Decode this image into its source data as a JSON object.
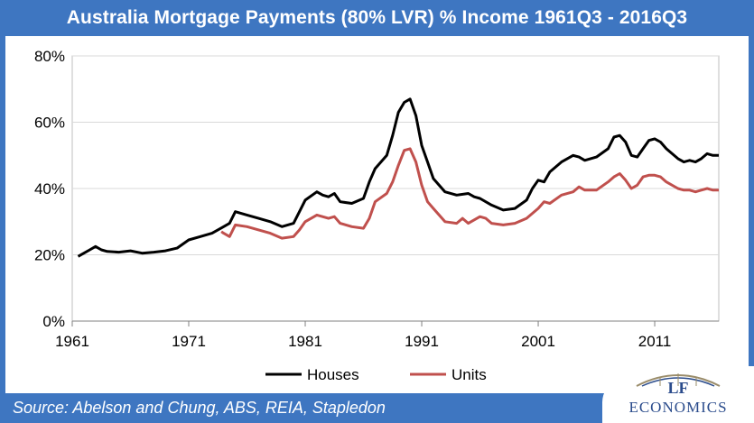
{
  "header": {
    "title": "Australia Mortgage Payments (80% LVR) % Income 1961Q3  - 2016Q3"
  },
  "footer": {
    "source": "Source:  Abelson and Chung, ABS, REIA, Stapledon"
  },
  "logo": {
    "line1": "LF",
    "line2": "ECONOMICS"
  },
  "colors": {
    "houses": "#000000",
    "units": "#c0504d",
    "frame": "#3e76c1",
    "grid": "#d9d9d9"
  },
  "chart_data": {
    "type": "line",
    "title": "Australia Mortgage Payments (80% LVR) % Income 1961Q3  - 2016Q3",
    "xlabel": "",
    "ylabel": "",
    "xlim": [
      1961,
      2016.5
    ],
    "ylim": [
      0,
      80
    ],
    "x_ticks": [
      "1961",
      "1971",
      "1981",
      "1991",
      "2001",
      "2011"
    ],
    "y_ticks": [
      "0%",
      "20%",
      "40%",
      "60%",
      "80%"
    ],
    "grid": true,
    "legend": "bottom-center",
    "series": [
      {
        "name": "Houses",
        "color": "#000000",
        "points": [
          [
            1961.5,
            19.5
          ],
          [
            1962,
            20.5
          ],
          [
            1962.5,
            21.5
          ],
          [
            1963,
            22.5
          ],
          [
            1963.5,
            21.5
          ],
          [
            1964,
            21
          ],
          [
            1965,
            20.8
          ],
          [
            1966,
            21.2
          ],
          [
            1967,
            20.5
          ],
          [
            1968,
            20.8
          ],
          [
            1969,
            21.2
          ],
          [
            1970,
            22
          ],
          [
            1971,
            24.5
          ],
          [
            1972,
            25.5
          ],
          [
            1973,
            26.5
          ],
          [
            1974,
            28.5
          ],
          [
            1974.5,
            29.5
          ],
          [
            1975,
            33
          ],
          [
            1976,
            32
          ],
          [
            1977,
            31
          ],
          [
            1978,
            30
          ],
          [
            1979,
            28.5
          ],
          [
            1980,
            29.5
          ],
          [
            1980.5,
            33
          ],
          [
            1981,
            36.5
          ],
          [
            1982,
            39
          ],
          [
            1982.5,
            38
          ],
          [
            1983,
            37.5
          ],
          [
            1983.5,
            38.5
          ],
          [
            1984,
            36
          ],
          [
            1985,
            35.5
          ],
          [
            1986,
            37
          ],
          [
            1986.5,
            42
          ],
          [
            1987,
            46
          ],
          [
            1988,
            50
          ],
          [
            1988.5,
            56
          ],
          [
            1989,
            63
          ],
          [
            1989.5,
            66
          ],
          [
            1990,
            67
          ],
          [
            1990.5,
            62
          ],
          [
            1991,
            53
          ],
          [
            1991.5,
            48
          ],
          [
            1992,
            43
          ],
          [
            1993,
            39
          ],
          [
            1994,
            38
          ],
          [
            1995,
            38.5
          ],
          [
            1995.5,
            37.5
          ],
          [
            1996,
            37
          ],
          [
            1997,
            35
          ],
          [
            1998,
            33.5
          ],
          [
            1999,
            34
          ],
          [
            2000,
            36.5
          ],
          [
            2000.5,
            40
          ],
          [
            2001,
            42.5
          ],
          [
            2001.5,
            42
          ],
          [
            2002,
            45
          ],
          [
            2003,
            48
          ],
          [
            2004,
            50
          ],
          [
            2004.5,
            49.5
          ],
          [
            2005,
            48.5
          ],
          [
            2006,
            49.5
          ],
          [
            2007,
            52
          ],
          [
            2007.5,
            55.5
          ],
          [
            2008,
            56
          ],
          [
            2008.5,
            54
          ],
          [
            2009,
            50
          ],
          [
            2009.5,
            49.5
          ],
          [
            2010,
            52
          ],
          [
            2010.5,
            54.5
          ],
          [
            2011,
            55
          ],
          [
            2011.5,
            54
          ],
          [
            2012,
            52
          ],
          [
            2013,
            49
          ],
          [
            2013.5,
            48
          ],
          [
            2014,
            48.5
          ],
          [
            2014.5,
            48
          ],
          [
            2015,
            49
          ],
          [
            2015.5,
            50.5
          ],
          [
            2016,
            50
          ],
          [
            2016.5,
            50
          ]
        ]
      },
      {
        "name": "Units",
        "color": "#c0504d",
        "points": [
          [
            1973.8,
            27
          ],
          [
            1974,
            26.5
          ],
          [
            1974.5,
            25.5
          ],
          [
            1975,
            29
          ],
          [
            1976,
            28.5
          ],
          [
            1977,
            27.5
          ],
          [
            1978,
            26.5
          ],
          [
            1979,
            25
          ],
          [
            1980,
            25.5
          ],
          [
            1980.5,
            27.5
          ],
          [
            1981,
            30
          ],
          [
            1982,
            32
          ],
          [
            1983,
            31
          ],
          [
            1983.5,
            31.5
          ],
          [
            1984,
            29.5
          ],
          [
            1985,
            28.5
          ],
          [
            1986,
            28
          ],
          [
            1986.5,
            31
          ],
          [
            1987,
            36
          ],
          [
            1988,
            38.5
          ],
          [
            1988.5,
            42
          ],
          [
            1989,
            47
          ],
          [
            1989.5,
            51.5
          ],
          [
            1990,
            52
          ],
          [
            1990.5,
            48
          ],
          [
            1991,
            41
          ],
          [
            1991.5,
            36
          ],
          [
            1992,
            34
          ],
          [
            1993,
            30
          ],
          [
            1994,
            29.5
          ],
          [
            1994.5,
            31
          ],
          [
            1995,
            29.5
          ],
          [
            1996,
            31.5
          ],
          [
            1996.5,
            31
          ],
          [
            1997,
            29.5
          ],
          [
            1998,
            29
          ],
          [
            1999,
            29.5
          ],
          [
            2000,
            31
          ],
          [
            2001,
            34
          ],
          [
            2001.5,
            36
          ],
          [
            2002,
            35.5
          ],
          [
            2003,
            38
          ],
          [
            2004,
            39
          ],
          [
            2004.5,
            40.5
          ],
          [
            2005,
            39.5
          ],
          [
            2006,
            39.5
          ],
          [
            2007,
            42
          ],
          [
            2007.5,
            43.5
          ],
          [
            2008,
            44.5
          ],
          [
            2008.5,
            42.5
          ],
          [
            2009,
            40
          ],
          [
            2009.5,
            41
          ],
          [
            2010,
            43.5
          ],
          [
            2010.5,
            44
          ],
          [
            2011,
            44
          ],
          [
            2011.5,
            43.5
          ],
          [
            2012,
            42
          ],
          [
            2013,
            40
          ],
          [
            2013.5,
            39.5
          ],
          [
            2014,
            39.5
          ],
          [
            2014.5,
            39
          ],
          [
            2015,
            39.5
          ],
          [
            2015.5,
            40
          ],
          [
            2016,
            39.5
          ],
          [
            2016.5,
            39.5
          ]
        ]
      }
    ]
  }
}
